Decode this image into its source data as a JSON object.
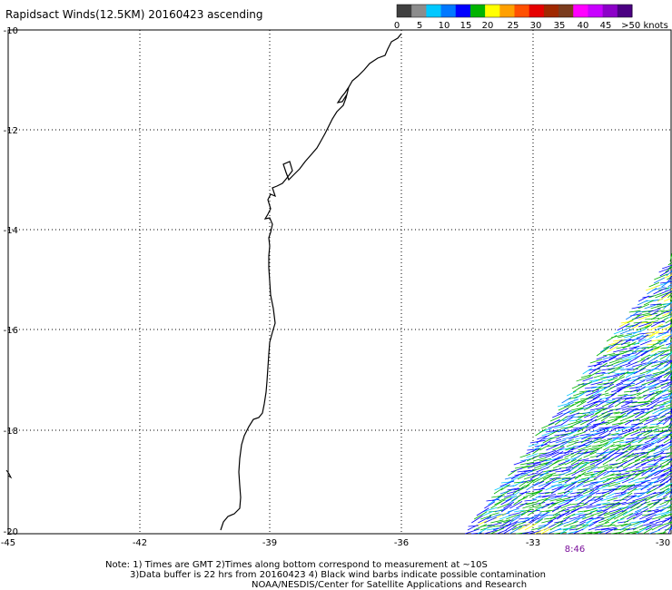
{
  "title": "Rapidsact Winds(12.5KM) 20160423 ascending",
  "legend": {
    "labels": [
      "0",
      "5",
      "10",
      "15",
      "20",
      "25",
      "30",
      "35",
      "40",
      "45",
      ">50 knots"
    ],
    "colors": [
      "#404040",
      "#8c8c8c",
      "#00c8ff",
      "#0078ff",
      "#0000ff",
      "#00b400",
      "#ffff00",
      "#ffa000",
      "#ff5000",
      "#e60000",
      "#a02800",
      "#7a3c1e",
      "#ff00ff",
      "#c800ff",
      "#8c00c8",
      "#4b0082"
    ]
  },
  "axes": {
    "lat_labels": [
      "-10",
      "-12",
      "-14",
      "-16",
      "-18",
      "-20"
    ],
    "lon_labels": [
      "-45",
      "-42",
      "-39",
      "-36",
      "-33",
      "-30"
    ]
  },
  "time_label": "8:46",
  "notes": [
    "Note: 1) Times are GMT 2)Times along bottom correspond to measurement at ~10S",
    "3)Data buffer is 22 hrs from 20160423 4) Black wind barbs indicate possible contamination",
    "NOAA/NESDIS/Center for Satellite Applications and Research"
  ]
}
